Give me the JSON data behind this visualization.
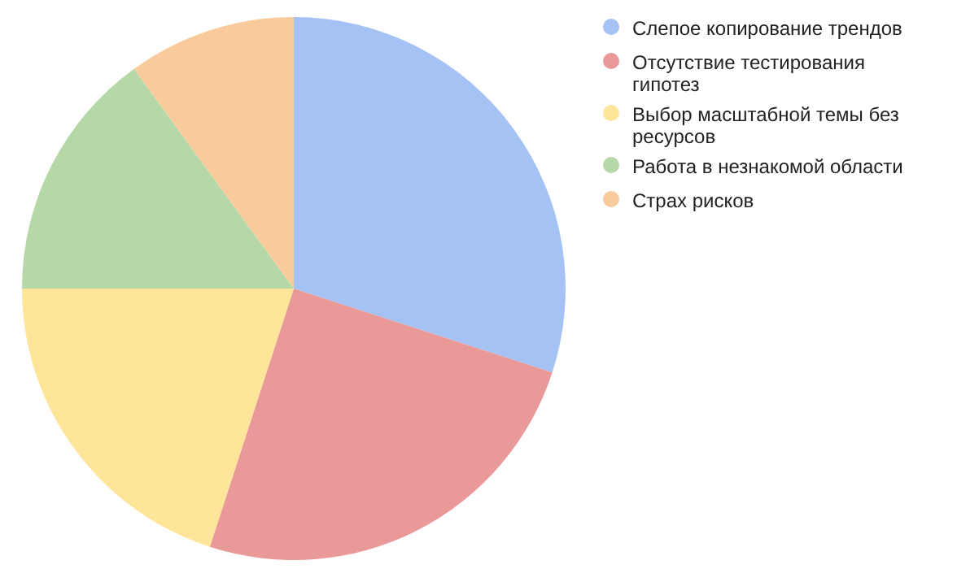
{
  "chart_data": {
    "type": "pie",
    "categories": [
      "Слепое копирование трендов",
      "Отсутствие тестирования гипотез",
      "Выбор масштабной темы без ресурсов",
      "Работа в незнакомой области",
      "Страх рисков"
    ],
    "values": [
      30,
      25,
      20,
      15,
      10
    ],
    "colors": [
      "#a4c2f4",
      "#ea9999",
      "#ffe599",
      "#b6d7a8",
      "#f9cb9c"
    ],
    "legend": "right"
  }
}
